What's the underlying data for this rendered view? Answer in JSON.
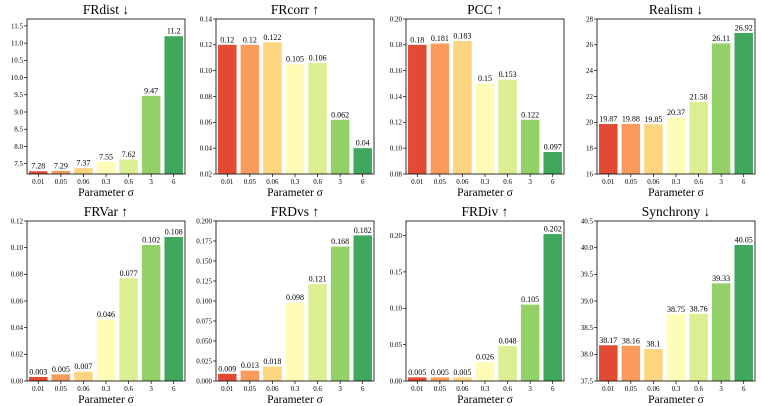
{
  "chart_data": [
    {
      "type": "bar",
      "title": "FRdist ↓",
      "xlabel": "Parameter σ",
      "ylabel": "",
      "categories": [
        "0.01",
        "0.05",
        "0.06",
        "0.3",
        "0.6",
        "3",
        "6"
      ],
      "values": [
        7.28,
        7.29,
        7.37,
        7.55,
        7.62,
        9.47,
        11.2
      ],
      "value_labels": [
        "7.28",
        "7.29",
        "7.37",
        "7.55",
        "7.62",
        "9.47",
        "11.2"
      ],
      "ylim": [
        7.2,
        11.7
      ],
      "yticks": [
        "7.5",
        "8.0",
        "8.5",
        "9.0",
        "9.5",
        "10.0",
        "10.5",
        "11.0",
        "11.5"
      ],
      "yticks_values": [
        7.5,
        8.0,
        8.5,
        9.0,
        9.5,
        10.0,
        10.5,
        11.0,
        11.5
      ],
      "grid": false,
      "legend": "none"
    },
    {
      "type": "bar",
      "title": "FRcorr ↑",
      "xlabel": "Parameter σ",
      "ylabel": "",
      "categories": [
        "0.01",
        "0.05",
        "0.06",
        "0.3",
        "0.6",
        "3",
        "6"
      ],
      "values": [
        0.12,
        0.12,
        0.122,
        0.105,
        0.106,
        0.062,
        0.04
      ],
      "value_labels": [
        "0.12",
        "0.12",
        "0.122",
        "0.105",
        "0.106",
        "0.062",
        "0.04"
      ],
      "ylim": [
        0.02,
        0.14
      ],
      "yticks": [
        "0.02",
        "0.04",
        "0.06",
        "0.08",
        "0.10",
        "0.12",
        "0.14"
      ],
      "yticks_values": [
        0.02,
        0.04,
        0.06,
        0.08,
        0.1,
        0.12,
        0.14
      ],
      "grid": false,
      "legend": "none"
    },
    {
      "type": "bar",
      "title": "PCC ↑",
      "xlabel": "Parameter σ",
      "ylabel": "",
      "categories": [
        "0.01",
        "0.05",
        "0.06",
        "0.3",
        "0.6",
        "3",
        "6"
      ],
      "values": [
        0.18,
        0.181,
        0.183,
        0.15,
        0.153,
        0.122,
        0.097
      ],
      "value_labels": [
        "0.18",
        "0.181",
        "0.183",
        "0.15",
        "0.153",
        "0.122",
        "0.097"
      ],
      "ylim": [
        0.08,
        0.2
      ],
      "yticks": [
        "0.08",
        "0.10",
        "0.12",
        "0.14",
        "0.16",
        "0.18",
        "0.20"
      ],
      "yticks_values": [
        0.08,
        0.1,
        0.12,
        0.14,
        0.16,
        0.18,
        0.2
      ],
      "grid": false,
      "legend": "none"
    },
    {
      "type": "bar",
      "title": "Realism ↓",
      "xlabel": "Parameter σ",
      "ylabel": "",
      "categories": [
        "0.01",
        "0.05",
        "0.06",
        "0.3",
        "0.6",
        "3",
        "6"
      ],
      "values": [
        19.87,
        19.88,
        19.85,
        20.37,
        21.58,
        26.11,
        26.92
      ],
      "value_labels": [
        "19.87",
        "19.88",
        "19.85",
        "20.37",
        "21.58",
        "26.11",
        "26.92"
      ],
      "ylim": [
        16,
        28
      ],
      "yticks": [
        "16",
        "18",
        "20",
        "22",
        "24",
        "26",
        "28"
      ],
      "yticks_values": [
        16,
        18,
        20,
        22,
        24,
        26,
        28
      ],
      "grid": false,
      "legend": "none"
    },
    {
      "type": "bar",
      "title": "FRVar ↑",
      "xlabel": "Parameter σ",
      "ylabel": "",
      "categories": [
        "0.01",
        "0.05",
        "0.06",
        "0.3",
        "0.6",
        "3",
        "6"
      ],
      "values": [
        0.003,
        0.005,
        0.007,
        0.046,
        0.077,
        0.102,
        0.108
      ],
      "value_labels": [
        "0.003",
        "0.005",
        "0.007",
        "0.046",
        "0.077",
        "0.102",
        "0.108"
      ],
      "ylim": [
        0,
        0.12
      ],
      "yticks": [
        "0.00",
        "0.02",
        "0.04",
        "0.06",
        "0.08",
        "0.10",
        "0.12"
      ],
      "yticks_values": [
        0,
        0.02,
        0.04,
        0.06,
        0.08,
        0.1,
        0.12
      ],
      "grid": false,
      "legend": "none"
    },
    {
      "type": "bar",
      "title": "FRDvs ↑",
      "xlabel": "Parameter σ",
      "ylabel": "",
      "categories": [
        "0.01",
        "0.05",
        "0.06",
        "0.3",
        "0.6",
        "3",
        "6"
      ],
      "values": [
        0.009,
        0.013,
        0.018,
        0.098,
        0.121,
        0.168,
        0.182
      ],
      "value_labels": [
        "0.009",
        "0.013",
        "0.018",
        "0.098",
        "0.121",
        "0.168",
        "0.182"
      ],
      "ylim": [
        0,
        0.2
      ],
      "yticks": [
        "0.000",
        "0.025",
        "0.050",
        "0.075",
        "0.100",
        "0.125",
        "0.150",
        "0.175",
        "0.200"
      ],
      "yticks_values": [
        0,
        0.025,
        0.05,
        0.075,
        0.1,
        0.125,
        0.15,
        0.175,
        0.2
      ],
      "grid": false,
      "legend": "none"
    },
    {
      "type": "bar",
      "title": "FRDiv ↑",
      "xlabel": "Parameter σ",
      "ylabel": "",
      "categories": [
        "0.01",
        "0.05",
        "0.06",
        "0.3",
        "0.6",
        "3",
        "6"
      ],
      "values": [
        0.005,
        0.005,
        0.005,
        0.026,
        0.048,
        0.105,
        0.202
      ],
      "value_labels": [
        "0.005",
        "0.005",
        "0.005",
        "0.026",
        "0.048",
        "0.105",
        "0.202"
      ],
      "ylim": [
        0,
        0.22
      ],
      "yticks": [
        "0.00",
        "0.05",
        "0.10",
        "0.15",
        "0.20"
      ],
      "yticks_values": [
        0,
        0.05,
        0.1,
        0.15,
        0.2
      ],
      "grid": false,
      "legend": "none"
    },
    {
      "type": "bar",
      "title": "Synchrony ↓",
      "xlabel": "Parameter σ",
      "ylabel": "",
      "categories": [
        "0.01",
        "0.05",
        "0.06",
        "0.3",
        "0.6",
        "3",
        "6"
      ],
      "values": [
        38.17,
        38.16,
        38.1,
        38.75,
        38.76,
        39.33,
        40.05
      ],
      "value_labels": [
        "38.17",
        "38.16",
        "38.1",
        "38.75",
        "38.76",
        "39.33",
        "40.05"
      ],
      "ylim": [
        37.5,
        40.5
      ],
      "yticks": [
        "37.5",
        "38.0",
        "38.5",
        "39.0",
        "39.5",
        "40.0",
        "40.5"
      ],
      "yticks_values": [
        37.5,
        38.0,
        38.5,
        39.0,
        39.5,
        40.0,
        40.5
      ],
      "grid": false,
      "legend": "none"
    }
  ],
  "colors": [
    "#e34a33",
    "#f89b5b",
    "#fdd580",
    "#fefcb7",
    "#dbee91",
    "#93d168",
    "#3fa85c"
  ]
}
